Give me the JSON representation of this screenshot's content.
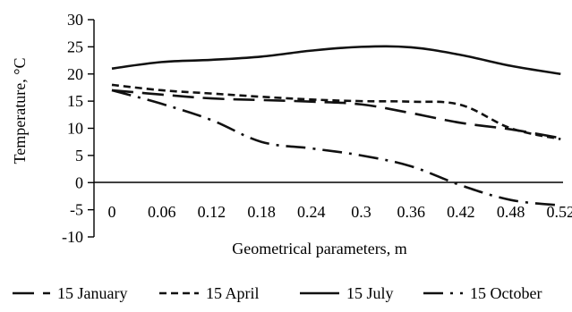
{
  "chart_data": {
    "type": "line",
    "xlabel": "Geometrical parameters, m",
    "ylabel": "Temperature, °C",
    "x": [
      0,
      0.06,
      0.12,
      0.18,
      0.24,
      0.3,
      0.36,
      0.42,
      0.48,
      0.52
    ],
    "x_tick_labels": [
      "0",
      "0.06",
      "0.12",
      "0.18",
      "0.24",
      "0.3",
      "0.36",
      "0.42",
      "0.48",
      "0.52"
    ],
    "ylim": [
      -10,
      30
    ],
    "y_ticks": [
      -10,
      -5,
      0,
      5,
      10,
      15,
      20,
      25,
      30
    ],
    "grid": false,
    "legend_position": "bottom",
    "series": [
      {
        "name": "15 January",
        "dash": "long-dash",
        "values": [
          17,
          16.2,
          15.5,
          15.2,
          14.9,
          14.4,
          12.8,
          11,
          9.8,
          8.2
        ]
      },
      {
        "name": "15 April",
        "dash": "short-dash",
        "values": [
          18,
          17,
          16.4,
          15.8,
          15.3,
          15,
          14.9,
          14.3,
          10,
          8
        ]
      },
      {
        "name": "15 July",
        "dash": "solid",
        "values": [
          21,
          22.2,
          22.6,
          23.2,
          24.3,
          25,
          24.9,
          23.5,
          21.5,
          20
        ]
      },
      {
        "name": "15 October",
        "dash": "dash-dot",
        "values": [
          17,
          14.5,
          11.5,
          7.5,
          6.3,
          5,
          3,
          -0.5,
          -3.2,
          -4.2
        ]
      }
    ]
  }
}
